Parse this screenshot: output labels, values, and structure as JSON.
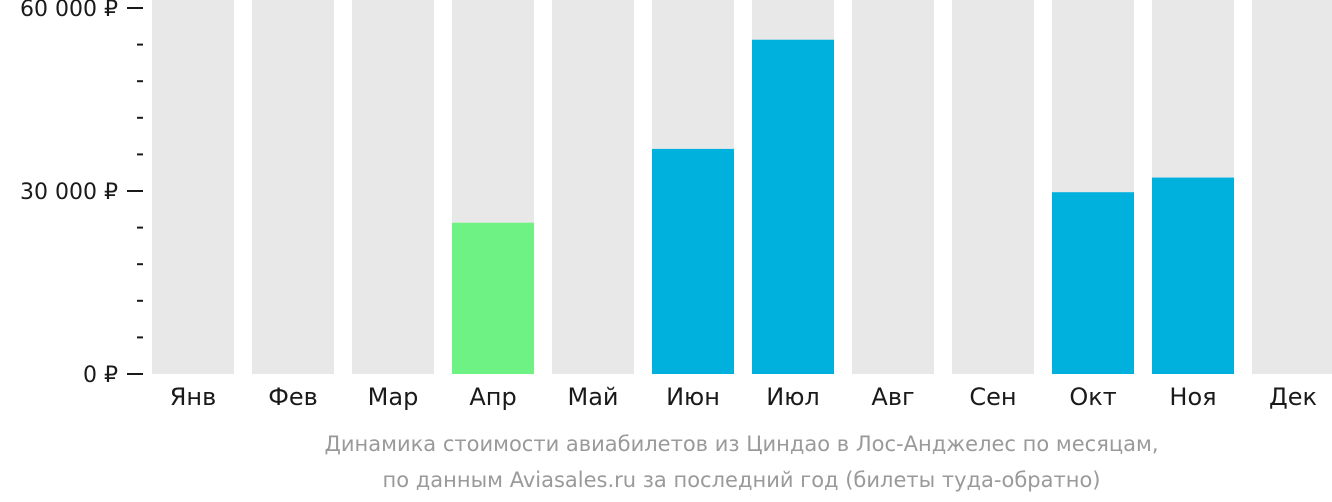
{
  "chart_data": {
    "type": "bar",
    "categories": [
      "Янв",
      "Фев",
      "Мар",
      "Апр",
      "Май",
      "Июн",
      "Июл",
      "Авг",
      "Сен",
      "Окт",
      "Ноя",
      "Дек"
    ],
    "values": [
      null,
      null,
      null,
      24800,
      null,
      36900,
      54800,
      null,
      null,
      29800,
      32200,
      null
    ],
    "highlight_index": 3,
    "ylim": [
      0,
      60000
    ],
    "yticks": [
      {
        "value": 0,
        "label": "0 ₽"
      },
      {
        "value": 30000,
        "label": "30 000 ₽"
      },
      {
        "value": 60000,
        "label": "60 000 ₽"
      }
    ],
    "minor_tick_step": 6000,
    "xlabel": "",
    "ylabel": "",
    "grid": false,
    "caption": [
      "Динамика стоимости авиабилетов из Циндао в Лос-Анджелес по месяцам,",
      "по данным Aviasales.ru за последний год (билеты туда-обратно)"
    ]
  },
  "colors": {
    "bar": "#00b0dd",
    "highlight": "#6ef284",
    "background_bar": "#e8e8e8",
    "text": "#1a1a1a",
    "caption": "#9a9a9a"
  }
}
